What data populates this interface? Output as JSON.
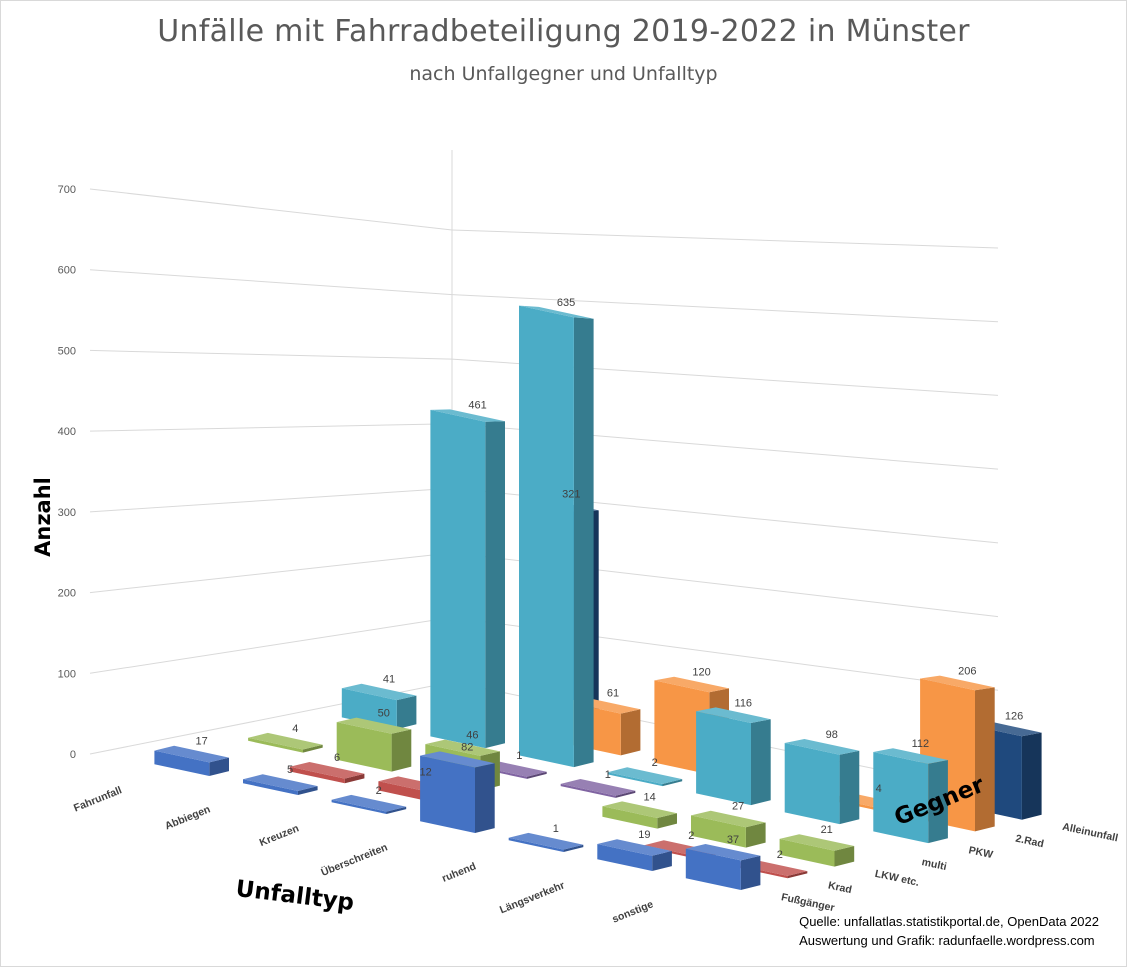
{
  "chart_data": {
    "type": "bar",
    "subtype": "3d-column",
    "title": "Unfälle mit Fahrradbeteiligung 2019-2022 in Münster",
    "subtitle": "nach Unfallgegner und Unfalltyp",
    "zlabel": "Anzahl",
    "xlabel": "Unfalltyp",
    "ylabel": "Gegner",
    "zlim": [
      0,
      700
    ],
    "zticks": [
      0,
      100,
      200,
      300,
      400,
      500,
      600,
      700
    ],
    "grid": true,
    "categories": [
      "Fahrunfall",
      "Abbiegen",
      "Kreuzen",
      "Überschreiten",
      "ruhend",
      "Längsverkehr",
      "sonstige"
    ],
    "series": [
      {
        "name": "Fußgänger",
        "color": "#4472C4",
        "values": [
          17,
          5,
          2,
          82,
          1,
          19,
          37
        ]
      },
      {
        "name": "Krad",
        "color": "#C0504D",
        "values": [
          null,
          6,
          12,
          null,
          null,
          2,
          2
        ]
      },
      {
        "name": "LKW etc.",
        "color": "#9BBB59",
        "values": [
          4,
          50,
          46,
          null,
          14,
          27,
          21
        ]
      },
      {
        "name": "multi",
        "color": "#8064A2",
        "values": [
          null,
          null,
          1,
          1,
          null,
          null,
          null
        ]
      },
      {
        "name": "PKW",
        "color": "#4BACC6",
        "values": [
          41,
          461,
          635,
          2,
          116,
          98,
          112
        ]
      },
      {
        "name": "2.Rad",
        "color": "#F79646",
        "values": [
          null,
          null,
          61,
          120,
          null,
          4,
          206
        ]
      },
      {
        "name": "Alleinunfall",
        "color": "#1F497D",
        "values": [
          null,
          321,
          null,
          null,
          null,
          null,
          126
        ]
      }
    ]
  },
  "source": {
    "line1": "Quelle: unfallatlas.statistikportal.de, OpenData 2022",
    "line2": "Auswertung und Grafik: radunfaelle.wordpress.com"
  }
}
